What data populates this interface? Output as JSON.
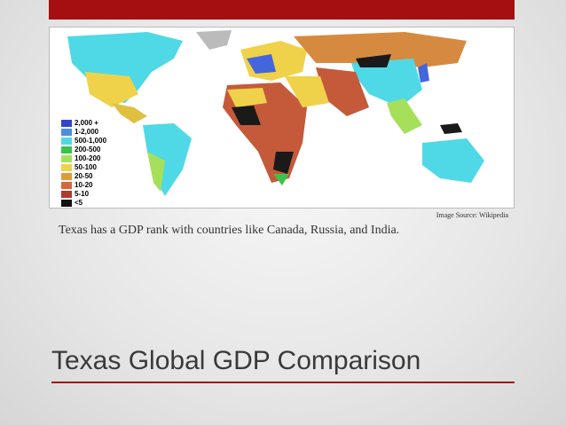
{
  "slide": {
    "title": "Texas Global GDP Comparison",
    "body": "Texas has a GDP rank with countries like Canada, Russia, and India.",
    "image_source": "Image Source: Wikipedia",
    "map_legend": [
      "2,000 +",
      "1-2,000",
      "500-1,000",
      "200-500",
      "100-200",
      "50-100",
      "20-50",
      "10-20",
      "5-10",
      "<5"
    ]
  }
}
